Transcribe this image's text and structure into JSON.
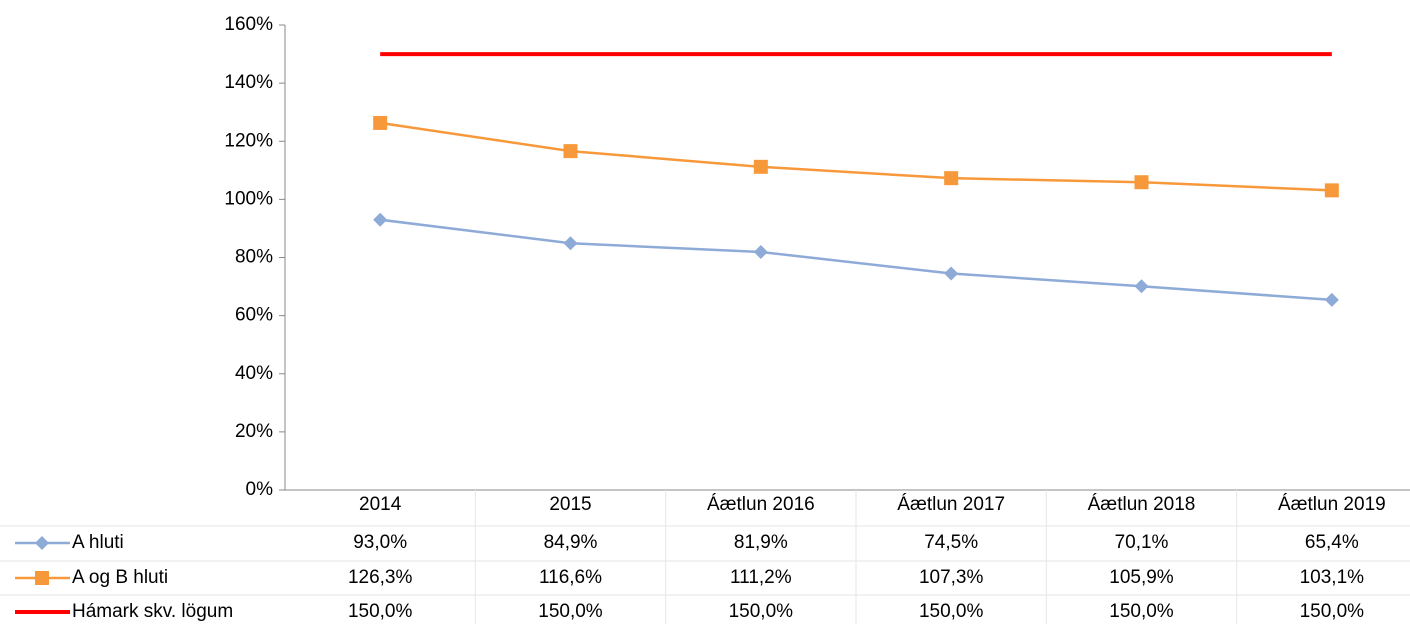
{
  "chart_data": {
    "type": "line",
    "categories": [
      "2014",
      "2015",
      "Áætlun 2016",
      "Áætlun 2017",
      "Áætlun 2018",
      "Áætlun 2019"
    ],
    "series": [
      {
        "name": "A hluti",
        "color": "#8eaad6",
        "marker": "diamond",
        "values": [
          93.0,
          84.9,
          81.9,
          74.5,
          70.1,
          65.4
        ],
        "value_labels": [
          "93,0%",
          "84,9%",
          "81,9%",
          "74,5%",
          "70,1%",
          "65,4%"
        ]
      },
      {
        "name": "A og B hluti",
        "color": "#f7983a",
        "marker": "square",
        "values": [
          126.3,
          116.6,
          111.2,
          107.3,
          105.9,
          103.1
        ],
        "value_labels": [
          "126,3%",
          "116,6%",
          "111,2%",
          "107,3%",
          "105,9%",
          "103,1%"
        ]
      },
      {
        "name": "Hámark skv. lögum",
        "color": "#ff0000",
        "marker": null,
        "values": [
          150.0,
          150.0,
          150.0,
          150.0,
          150.0,
          150.0
        ],
        "value_labels": [
          "150,0%",
          "150,0%",
          "150,0%",
          "150,0%",
          "150,0%",
          "150,0%"
        ]
      }
    ],
    "ylim": [
      0,
      160
    ],
    "yticks": [
      {
        "value": 0,
        "label": "0%"
      },
      {
        "value": 20,
        "label": "20%"
      },
      {
        "value": 40,
        "label": "40%"
      },
      {
        "value": 60,
        "label": "60%"
      },
      {
        "value": 80,
        "label": "80%"
      },
      {
        "value": 100,
        "label": "100%"
      },
      {
        "value": 120,
        "label": "120%"
      },
      {
        "value": 140,
        "label": "140%"
      },
      {
        "value": 160,
        "label": "160%"
      }
    ],
    "grid": false,
    "data_table": true
  }
}
